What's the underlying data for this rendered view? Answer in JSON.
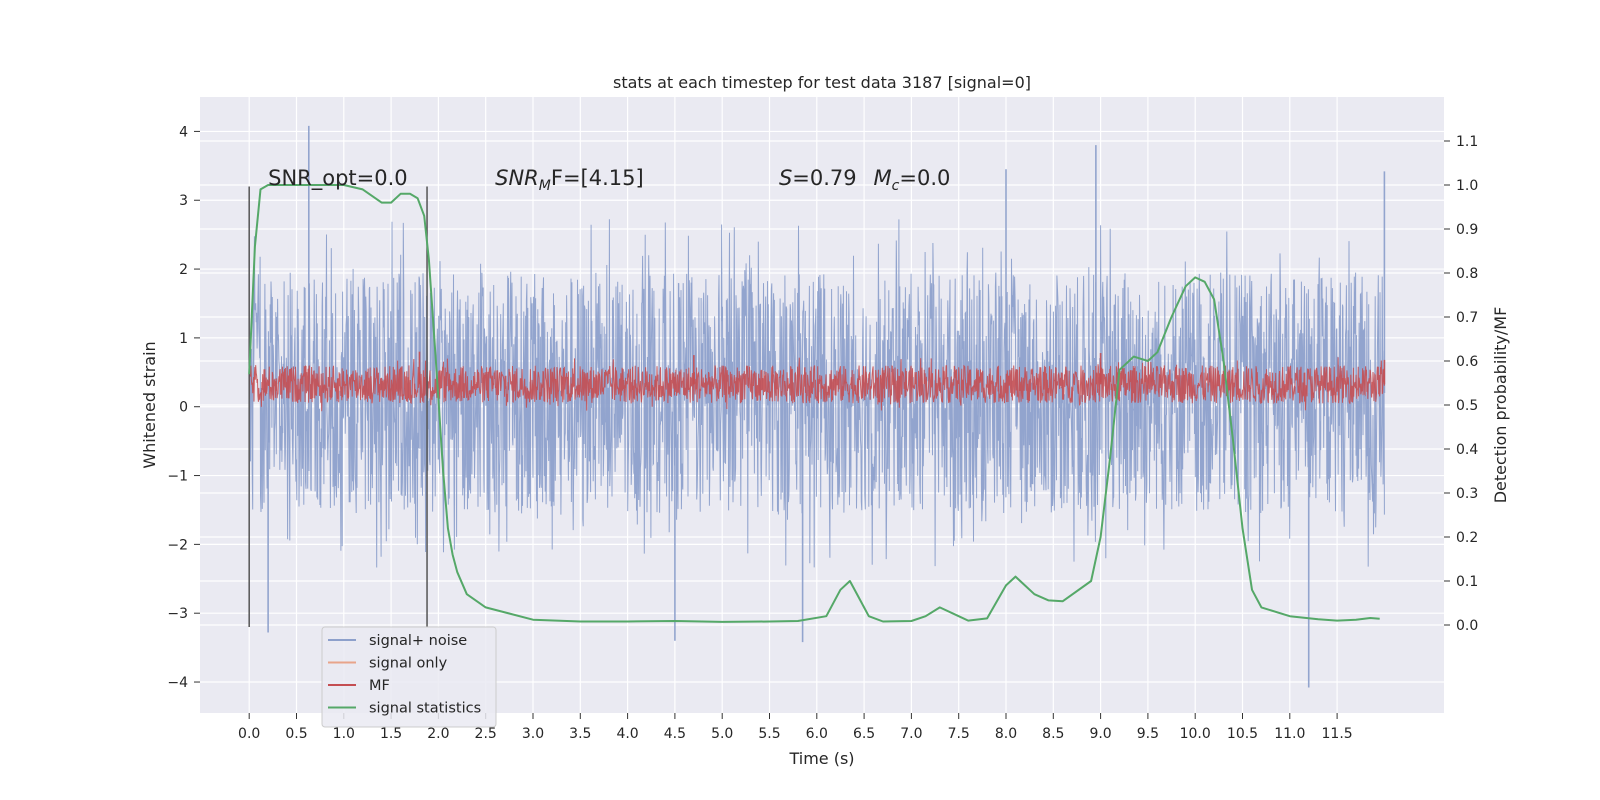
{
  "chart_data": {
    "type": "line",
    "title": "stats at each timestep for test data 3187 [signal=0]",
    "xlabel": "Time (s)",
    "ylabel": "Whitened strain",
    "y2label": "Detection probability/MF",
    "xlim": [
      -0.52,
      12.63
    ],
    "ylim": [
      -4.45,
      4.5
    ],
    "y2lim": [
      -0.2,
      1.2
    ],
    "x_ticks": [
      0.0,
      0.5,
      1.0,
      1.5,
      2.0,
      2.5,
      3.0,
      3.5,
      4.0,
      4.5,
      5.0,
      5.5,
      6.0,
      6.5,
      7.0,
      7.5,
      8.0,
      8.5,
      9.0,
      9.5,
      10.0,
      10.5,
      11.0,
      11.5
    ],
    "x_tick_labels": [
      "0.0",
      "0.5",
      "1.0",
      "1.5",
      "2.0",
      "2.5",
      "3.0",
      "3.5",
      "4.0",
      "4.5",
      "5.0",
      "5.5",
      "6.0",
      "6.5",
      "7.0",
      "7.5",
      "8.0",
      "8.5",
      "9.0",
      "9.5",
      "10.0",
      "10.5",
      "11.0",
      "11.5"
    ],
    "y_ticks": [
      -4,
      -3,
      -2,
      -1,
      0,
      1,
      2,
      3,
      4
    ],
    "y_tick_labels": [
      "−4",
      "−3",
      "−2",
      "−1",
      "0",
      "1",
      "2",
      "3",
      "4"
    ],
    "y2_ticks": [
      0.0,
      0.1,
      0.2,
      0.3,
      0.4,
      0.5,
      0.6,
      0.7,
      0.8,
      0.9,
      1.0,
      1.1
    ],
    "y2_tick_labels": [
      "0.0",
      "0.1",
      "0.2",
      "0.3",
      "0.4",
      "0.5",
      "0.6",
      "0.7",
      "0.8",
      "0.9",
      "1.0",
      "1.1"
    ],
    "grid": true,
    "legend_position": "lower-left",
    "background": "#eaeaf2",
    "annotations": [
      {
        "text": "SNR_opt=0.0",
        "x": 0.2,
        "y": 3.22
      },
      {
        "text": "SNR",
        "sub": "M",
        "after": "F=[4.15]",
        "italic": true,
        "x": 2.6,
        "y": 3.22
      },
      {
        "text": "S=0.79",
        "italic_first": true,
        "x": 5.6,
        "y": 3.22
      },
      {
        "text": "M",
        "sub": "c",
        "after": "=0.0",
        "italic": true,
        "x": 6.6,
        "y": 3.22
      }
    ],
    "vertical_markers": [
      {
        "x": 0.0,
        "y": [
          -3.2,
          3.2
        ]
      },
      {
        "x": 1.88,
        "y": [
          -3.2,
          3.2
        ]
      }
    ],
    "series": [
      {
        "name": "signal+ noise",
        "axis": "left",
        "color": "#8da0cb",
        "kind": "dense-noise",
        "x_range": [
          0.0,
          12.0
        ],
        "band": [
          -1.55,
          1.95
        ],
        "extrema": [
          [
            0.63,
            4.08
          ],
          [
            8.95,
            3.8
          ],
          [
            11.2,
            -4.08
          ],
          [
            4.5,
            -3.4
          ],
          [
            0.2,
            -3.28
          ],
          [
            5.85,
            -3.42
          ],
          [
            12.0,
            3.42
          ],
          [
            8.0,
            3.45
          ]
        ]
      },
      {
        "name": "signal only",
        "axis": "left",
        "color": "#e8a48a",
        "values": []
      },
      {
        "name": "MF",
        "axis": "left",
        "color": "#c44e52",
        "kind": "dense-noise",
        "x_range": [
          0.0,
          12.0
        ],
        "band": [
          0.05,
          0.6
        ],
        "extrema": [
          [
            1.8,
            0.8
          ],
          [
            4.7,
            0.75
          ],
          [
            9.0,
            0.78
          ],
          [
            12.0,
            0.68
          ]
        ]
      },
      {
        "name": "signal statistics",
        "axis": "right",
        "color": "#55a868",
        "x": [
          0.0,
          0.06,
          0.12,
          0.2,
          0.4,
          0.7,
          1.0,
          1.2,
          1.4,
          1.5,
          1.6,
          1.7,
          1.78,
          1.85,
          1.9,
          1.98,
          2.05,
          2.1,
          2.15,
          2.2,
          2.3,
          2.5,
          3.0,
          3.5,
          4.0,
          4.5,
          5.0,
          5.5,
          5.8,
          6.1,
          6.25,
          6.35,
          6.45,
          6.55,
          6.7,
          7.0,
          7.15,
          7.3,
          7.5,
          7.6,
          7.8,
          8.0,
          8.1,
          8.2,
          8.3,
          8.45,
          8.6,
          8.9,
          9.0,
          9.1,
          9.2,
          9.35,
          9.5,
          9.6,
          9.75,
          9.9,
          10.0,
          10.1,
          10.2,
          10.3,
          10.4,
          10.5,
          10.6,
          10.7,
          11.0,
          11.3,
          11.5,
          11.7,
          11.85,
          11.95
        ],
        "values": [
          0.57,
          0.86,
          0.99,
          1.0,
          1.0,
          1.0,
          1.0,
          0.99,
          0.96,
          0.96,
          0.98,
          0.98,
          0.97,
          0.93,
          0.83,
          0.58,
          0.35,
          0.22,
          0.16,
          0.12,
          0.07,
          0.04,
          0.012,
          0.008,
          0.008,
          0.009,
          0.007,
          0.008,
          0.009,
          0.02,
          0.08,
          0.1,
          0.06,
          0.02,
          0.008,
          0.009,
          0.02,
          0.04,
          0.02,
          0.01,
          0.015,
          0.09,
          0.11,
          0.09,
          0.07,
          0.056,
          0.054,
          0.1,
          0.2,
          0.38,
          0.58,
          0.61,
          0.6,
          0.62,
          0.7,
          0.77,
          0.79,
          0.78,
          0.74,
          0.6,
          0.42,
          0.22,
          0.08,
          0.04,
          0.02,
          0.013,
          0.01,
          0.012,
          0.016,
          0.014
        ]
      }
    ]
  }
}
